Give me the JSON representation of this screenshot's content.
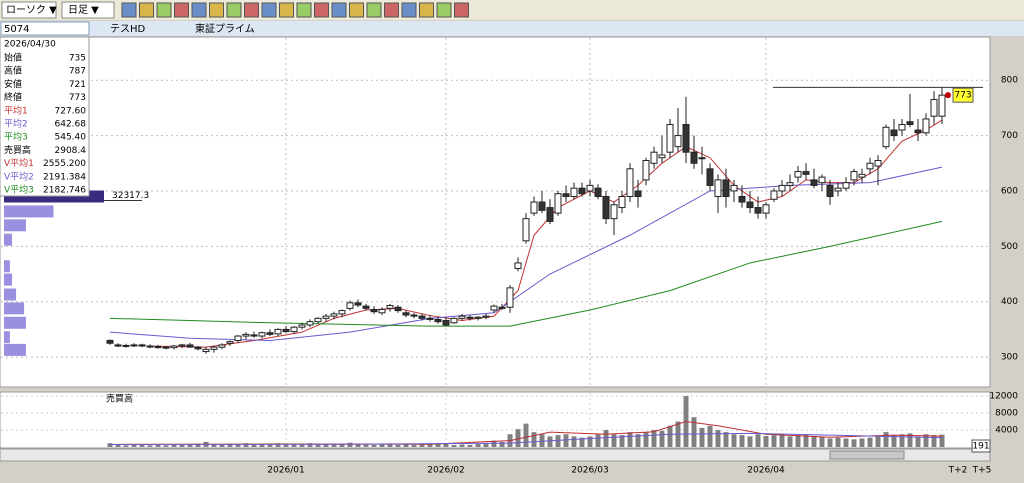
{
  "toolbar": {
    "chart_type": "ローソク ▼",
    "period": "日足 ▼"
  },
  "symbol": {
    "code": "5074",
    "name": "テスHD",
    "market": "東証プライム"
  },
  "info_panel": {
    "date": "2026/04/30",
    "rows": [
      [
        "始値",
        "735"
      ],
      [
        "高値",
        "787"
      ],
      [
        "安値",
        "721"
      ],
      [
        "終値",
        "773"
      ],
      [
        "平均1",
        "727.60"
      ],
      [
        "平均2",
        "642.68"
      ],
      [
        "平均3",
        "545.40"
      ],
      [
        "売買高",
        "2908.4"
      ],
      [
        "V平均1",
        "2555.200"
      ],
      [
        "V平均2",
        "2191.384"
      ],
      [
        "V平均3",
        "2182.746"
      ]
    ]
  },
  "chart": {
    "type": "candlestick",
    "dates": [
      null,
      null,
      null,
      null,
      null,
      null,
      null,
      null,
      null,
      null,
      null,
      null,
      null,
      null,
      null,
      null,
      null,
      null,
      null,
      null,
      null,
      null,
      "2026/01",
      null,
      null,
      null,
      null,
      null,
      null,
      null,
      null,
      null,
      null,
      null,
      null,
      null,
      null,
      null,
      null,
      null,
      null,
      null,
      "2026/02",
      null,
      null,
      null,
      null,
      null,
      null,
      null,
      null,
      null,
      null,
      null,
      null,
      null,
      null,
      null,
      null,
      null,
      "2026/03",
      null,
      null,
      null,
      null,
      null,
      null,
      null,
      null,
      null,
      null,
      null,
      null,
      null,
      null,
      null,
      null,
      null,
      null,
      null,
      null,
      null,
      "2026/04",
      null,
      null,
      null,
      null,
      null,
      null,
      null,
      null,
      null,
      null,
      null,
      null,
      null,
      null,
      null,
      null,
      null,
      null,
      null,
      null,
      null,
      null,
      null,
      "T+2",
      null,
      null,
      "T+5"
    ],
    "candles": [
      [
        330,
        332,
        322,
        325
      ],
      [
        322,
        325,
        318,
        320
      ],
      [
        320,
        324,
        317,
        321
      ],
      [
        321,
        325,
        318,
        322
      ],
      [
        322,
        324,
        318,
        320
      ],
      [
        320,
        323,
        316,
        319
      ],
      [
        319,
        322,
        315,
        318
      ],
      [
        318,
        320,
        314,
        317
      ],
      [
        317,
        322,
        314,
        320
      ],
      [
        320,
        324,
        316,
        322
      ],
      [
        322,
        326,
        317,
        318
      ],
      [
        318,
        320,
        312,
        315
      ],
      [
        310,
        318,
        306,
        314
      ],
      [
        314,
        320,
        308,
        318
      ],
      [
        318,
        325,
        314,
        322
      ],
      [
        325,
        330,
        320,
        328
      ],
      [
        330,
        340,
        326,
        338
      ],
      [
        338,
        345,
        332,
        341
      ],
      [
        340,
        346,
        335,
        338
      ],
      [
        338,
        346,
        334,
        344
      ],
      [
        344,
        350,
        338,
        341
      ],
      [
        342,
        352,
        338,
        350
      ],
      [
        350,
        356,
        344,
        346
      ],
      [
        346,
        356,
        342,
        354
      ],
      [
        354,
        362,
        350,
        358
      ],
      [
        358,
        368,
        354,
        364
      ],
      [
        364,
        372,
        360,
        370
      ],
      [
        370,
        378,
        364,
        374
      ],
      [
        374,
        382,
        368,
        378
      ],
      [
        378,
        386,
        372,
        384
      ],
      [
        388,
        402,
        384,
        398
      ],
      [
        398,
        404,
        390,
        394
      ],
      [
        392,
        396,
        384,
        388
      ],
      [
        386,
        392,
        378,
        382
      ],
      [
        380,
        390,
        376,
        386
      ],
      [
        388,
        396,
        382,
        393
      ],
      [
        390,
        394,
        380,
        384
      ],
      [
        380,
        384,
        372,
        376
      ],
      [
        376,
        380,
        370,
        374
      ],
      [
        374,
        378,
        366,
        370
      ],
      [
        370,
        376,
        364,
        368
      ],
      [
        368,
        372,
        360,
        364
      ],
      [
        366,
        372,
        356,
        358
      ],
      [
        362,
        372,
        360,
        370
      ],
      [
        370,
        378,
        366,
        374
      ],
      [
        372,
        376,
        366,
        370
      ],
      [
        370,
        374,
        366,
        372
      ],
      [
        372,
        378,
        368,
        374
      ],
      [
        385,
        395,
        380,
        392
      ],
      [
        390,
        396,
        385,
        388
      ],
      [
        390,
        430,
        380,
        425
      ],
      [
        460,
        480,
        455,
        470
      ],
      [
        510,
        560,
        505,
        550
      ],
      [
        560,
        590,
        555,
        580
      ],
      [
        580,
        600,
        560,
        565
      ],
      [
        570,
        585,
        540,
        545
      ],
      [
        560,
        600,
        555,
        595
      ],
      [
        595,
        610,
        580,
        590
      ],
      [
        590,
        615,
        585,
        605
      ],
      [
        605,
        615,
        590,
        595
      ],
      [
        600,
        620,
        590,
        610
      ],
      [
        605,
        612,
        585,
        590
      ],
      [
        590,
        600,
        540,
        550
      ],
      [
        550,
        580,
        520,
        575
      ],
      [
        570,
        600,
        560,
        590
      ],
      [
        590,
        650,
        580,
        640
      ],
      [
        600,
        620,
        570,
        590
      ],
      [
        620,
        660,
        610,
        655
      ],
      [
        650,
        680,
        640,
        670
      ],
      [
        660,
        700,
        650,
        665
      ],
      [
        670,
        730,
        660,
        720
      ],
      [
        680,
        750,
        670,
        700
      ],
      [
        720,
        770,
        650,
        670
      ],
      [
        670,
        700,
        640,
        650
      ],
      [
        660,
        680,
        630,
        660
      ],
      [
        640,
        650,
        600,
        610
      ],
      [
        590,
        630,
        560,
        620
      ],
      [
        620,
        640,
        570,
        590
      ],
      [
        600,
        620,
        580,
        610
      ],
      [
        590,
        610,
        570,
        580
      ],
      [
        580,
        600,
        560,
        570
      ],
      [
        570,
        590,
        550,
        560
      ],
      [
        560,
        580,
        550,
        575
      ],
      [
        585,
        605,
        580,
        600
      ],
      [
        600,
        620,
        590,
        610
      ],
      [
        610,
        630,
        600,
        615
      ],
      [
        625,
        645,
        615,
        635
      ],
      [
        635,
        650,
        620,
        630
      ],
      [
        620,
        640,
        605,
        610
      ],
      [
        615,
        630,
        600,
        625
      ],
      [
        610,
        620,
        575,
        590
      ],
      [
        600,
        615,
        590,
        605
      ],
      [
        605,
        625,
        600,
        615
      ],
      [
        620,
        640,
        610,
        635
      ],
      [
        625,
        640,
        615,
        630
      ],
      [
        640,
        660,
        630,
        650
      ],
      [
        645,
        665,
        610,
        655
      ],
      [
        680,
        720,
        675,
        715
      ],
      [
        710,
        730,
        690,
        700
      ],
      [
        710,
        730,
        700,
        720
      ],
      [
        725,
        775,
        715,
        720
      ],
      [
        710,
        730,
        690,
        705
      ],
      [
        705,
        740,
        700,
        730
      ],
      [
        735,
        780,
        720,
        765
      ],
      [
        735,
        787,
        721,
        773
      ]
    ],
    "ma": [
      {
        "color": "#c03030",
        "x": [
          5,
          12,
          18,
          24,
          28,
          32,
          36,
          40,
          44,
          48,
          51,
          53,
          56,
          60,
          63,
          66,
          69,
          72,
          75,
          78,
          81,
          84,
          87,
          90,
          93,
          96,
          99,
          102,
          104
        ],
        "values": [
          320,
          318,
          330,
          345,
          370,
          385,
          388,
          375,
          366,
          374,
          420,
          520,
          570,
          600,
          580,
          610,
          650,
          680,
          660,
          610,
          580,
          590,
          620,
          615,
          615,
          640,
          690,
          710,
          728
        ]
      },
      {
        "color": "#6a5acd",
        "x": [
          0,
          10,
          20,
          30,
          40,
          48,
          55,
          65,
          75,
          85,
          95,
          104
        ],
        "values": [
          345,
          334,
          330,
          345,
          370,
          380,
          450,
          520,
          600,
          610,
          615,
          643
        ]
      },
      {
        "color": "#1f8a1f",
        "x": [
          0,
          20,
          40,
          50,
          60,
          70,
          80,
          90,
          104
        ],
        "values": [
          370,
          362,
          356,
          356,
          385,
          420,
          470,
          500,
          545
        ]
      }
    ],
    "ylim": [
      246,
      878
    ],
    "yticks": [
      300,
      400,
      500,
      600,
      700,
      800
    ],
    "price_label": 773,
    "volume": {
      "label": "売買高",
      "values": [
        900,
        500,
        400,
        600,
        500,
        400,
        500,
        400,
        600,
        500,
        700,
        800,
        1200,
        700,
        500,
        800,
        600,
        900,
        700,
        600,
        700,
        900,
        600,
        800,
        700,
        900,
        600,
        700,
        800,
        600,
        1000,
        700,
        600,
        500,
        700,
        600,
        500,
        600,
        500,
        700,
        600,
        700,
        900,
        500,
        600,
        500,
        700,
        800,
        1500,
        1200,
        3000,
        4200,
        5500,
        3500,
        3000,
        2500,
        2800,
        3000,
        2500,
        2200,
        2500,
        3000,
        4000,
        3000,
        2800,
        3500,
        3000,
        3500,
        4000,
        3800,
        5000,
        6000,
        12000,
        7000,
        4500,
        5000,
        4000,
        3500,
        3000,
        2800,
        2500,
        3000,
        2600,
        2800,
        3000,
        2500,
        2800,
        3000,
        2600,
        2400,
        2000,
        2200,
        2000,
        1800,
        2000,
        2200,
        2500,
        3500,
        2800,
        3000,
        3200,
        2500,
        3000,
        2800,
        2908.4
      ],
      "ma": [
        {
          "color": "#c03030",
          "x": [
            0,
            20,
            40,
            50,
            55,
            62,
            68,
            72,
            76,
            82,
            90,
            98,
            104
          ],
          "values": [
            600,
            700,
            650,
            1500,
            3500,
            3000,
            3600,
            6000,
            5000,
            3000,
            2300,
            2800,
            2555.2
          ]
        },
        {
          "color": "#6a5acd",
          "x": [
            0,
            30,
            50,
            60,
            70,
            80,
            90,
            104
          ],
          "values": [
            600,
            650,
            900,
            2000,
            3000,
            3200,
            2800,
            2191.384
          ]
        }
      ],
      "ylim": [
        0,
        12000
      ],
      "yticks": [
        4000,
        8000,
        12000
      ],
      "badge": 191
    },
    "volume_profile": {
      "prices": [
        590,
        563,
        538,
        512,
        464,
        440,
        413,
        388,
        362,
        336,
        313
      ],
      "values": [
        32317.3,
        16000,
        7100,
        2600,
        1900,
        2600,
        3900,
        6500,
        7100,
        1900,
        7100
      ],
      "max_label": 32317.3
    }
  }
}
